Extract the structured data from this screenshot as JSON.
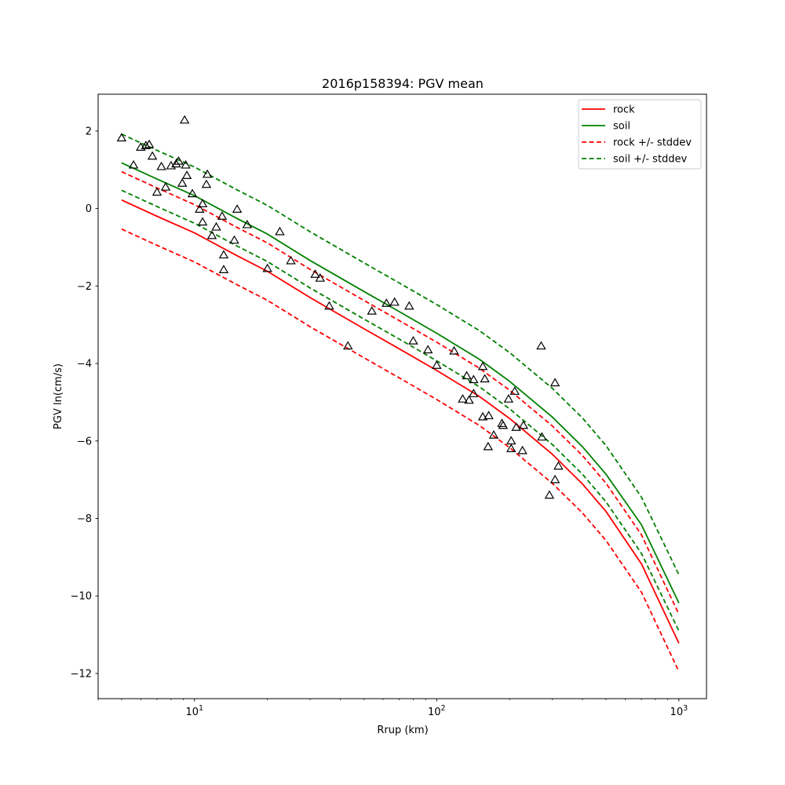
{
  "chart_data": {
    "type": "line",
    "title": "2016p158394: PGV mean",
    "xlabel": "Rrup (km)",
    "ylabel": "PGV ln(cm/s)",
    "xscale": "log",
    "xlim": [
      4.0,
      1300
    ],
    "ylim": [
      -12.65,
      2.95
    ],
    "x_tick_values": [
      10,
      100,
      1000
    ],
    "x_ticks": [
      {
        "base": "10",
        "exp": "1"
      },
      {
        "base": "10",
        "exp": "2"
      },
      {
        "base": "10",
        "exp": "3"
      }
    ],
    "y_tick_values": [
      2,
      0,
      -2,
      -4,
      -6,
      -8,
      -10,
      -12
    ],
    "y_ticks": [
      "2",
      "0",
      "−2",
      "−4",
      "−6",
      "−8",
      "−10",
      "−12"
    ],
    "grid": false,
    "legend_position": "top-right",
    "legend": [
      {
        "label": "rock",
        "color": "#ff0000",
        "style": "solid"
      },
      {
        "label": "soil",
        "color": "#008000",
        "style": "solid"
      },
      {
        "label": "rock +/- stddev",
        "color": "#ff0000",
        "style": "dashed"
      },
      {
        "label": "soil +/- stddev",
        "color": "#008000",
        "style": "dashed"
      }
    ],
    "series": [
      {
        "name": "rock",
        "color": "#ff0000",
        "style": "solid",
        "x": [
          5,
          7,
          10,
          15,
          20,
          30,
          50,
          70,
          100,
          150,
          200,
          300,
          400,
          500,
          700,
          1000
        ],
        "y": [
          0.22,
          -0.2,
          -0.63,
          -1.22,
          -1.62,
          -2.3,
          -3.1,
          -3.62,
          -4.18,
          -4.85,
          -5.42,
          -6.34,
          -7.11,
          -7.82,
          -9.17,
          -11.22
        ]
      },
      {
        "name": "soil",
        "color": "#008000",
        "style": "solid",
        "x": [
          5,
          7,
          10,
          15,
          20,
          30,
          50,
          70,
          100,
          150,
          200,
          300,
          400,
          500,
          700,
          1000
        ],
        "y": [
          1.18,
          0.76,
          0.33,
          -0.26,
          -0.66,
          -1.34,
          -2.14,
          -2.66,
          -3.22,
          -3.89,
          -4.46,
          -5.38,
          -6.15,
          -6.86,
          -8.16,
          -10.18
        ]
      },
      {
        "name": "rock - stddev",
        "color": "#ff0000",
        "style": "dashed",
        "x": [
          5,
          7,
          10,
          15,
          20,
          30,
          50,
          70,
          100,
          150,
          200,
          300,
          400,
          500,
          700,
          1000
        ],
        "y": [
          -0.53,
          -0.95,
          -1.38,
          -1.97,
          -2.37,
          -3.05,
          -3.85,
          -4.37,
          -4.93,
          -5.6,
          -6.17,
          -7.09,
          -7.86,
          -8.57,
          -9.9,
          -11.95
        ]
      },
      {
        "name": "rock + stddev",
        "color": "#ff0000",
        "style": "dashed",
        "x": [
          5,
          7,
          10,
          15,
          20,
          30,
          50,
          70,
          100,
          150,
          200,
          300,
          400,
          500,
          700,
          1000
        ],
        "y": [
          0.95,
          0.53,
          0.1,
          -0.49,
          -0.89,
          -1.57,
          -2.37,
          -2.89,
          -3.45,
          -4.12,
          -4.69,
          -5.61,
          -6.38,
          -7.09,
          -8.42,
          -10.47
        ]
      },
      {
        "name": "soil - stddev",
        "color": "#008000",
        "style": "dashed",
        "x": [
          5,
          7,
          10,
          15,
          20,
          30,
          50,
          70,
          100,
          150,
          200,
          300,
          400,
          500,
          700,
          1000
        ],
        "y": [
          0.47,
          0.05,
          -0.38,
          -0.97,
          -1.37,
          -2.05,
          -2.85,
          -3.37,
          -3.93,
          -4.6,
          -5.17,
          -6.09,
          -6.86,
          -7.57,
          -8.9,
          -10.9
        ]
      },
      {
        "name": "soil + stddev",
        "color": "#008000",
        "style": "dashed",
        "x": [
          5,
          7,
          10,
          15,
          20,
          30,
          50,
          70,
          100,
          150,
          200,
          300,
          400,
          500,
          700,
          1000
        ],
        "y": [
          1.92,
          1.5,
          1.07,
          0.48,
          0.08,
          -0.6,
          -1.4,
          -1.92,
          -2.48,
          -3.15,
          -3.72,
          -4.64,
          -5.41,
          -6.12,
          -7.45,
          -9.45
        ]
      }
    ],
    "observations": {
      "marker": "triangle",
      "color": "#000000",
      "points": [
        [
          5.0,
          1.82
        ],
        [
          5.6,
          1.12
        ],
        [
          6.0,
          1.58
        ],
        [
          6.3,
          1.62
        ],
        [
          6.5,
          1.65
        ],
        [
          6.7,
          1.35
        ],
        [
          7.0,
          0.42
        ],
        [
          7.3,
          1.08
        ],
        [
          7.6,
          0.55
        ],
        [
          8.0,
          1.1
        ],
        [
          8.4,
          1.15
        ],
        [
          8.6,
          1.22
        ],
        [
          8.9,
          0.65
        ],
        [
          9.1,
          2.28
        ],
        [
          9.2,
          1.12
        ],
        [
          9.3,
          0.85
        ],
        [
          9.8,
          0.38
        ],
        [
          10.5,
          -0.02
        ],
        [
          10.8,
          0.12
        ],
        [
          10.8,
          -0.35
        ],
        [
          11.2,
          0.62
        ],
        [
          11.3,
          0.88
        ],
        [
          11.8,
          -0.7
        ],
        [
          12.3,
          -0.48
        ],
        [
          13.0,
          -0.2
        ],
        [
          13.2,
          -1.2
        ],
        [
          13.2,
          -1.58
        ],
        [
          14.6,
          -0.82
        ],
        [
          15.0,
          -0.02
        ],
        [
          16.5,
          -0.42
        ],
        [
          20.0,
          -1.55
        ],
        [
          22.5,
          -0.6
        ],
        [
          25.0,
          -1.35
        ],
        [
          31.5,
          -1.7
        ],
        [
          33.0,
          -1.8
        ],
        [
          36.0,
          -2.52
        ],
        [
          43.0,
          -3.55
        ],
        [
          54.0,
          -2.65
        ],
        [
          62.0,
          -2.45
        ],
        [
          67.0,
          -2.42
        ],
        [
          77.0,
          -2.52
        ],
        [
          80.0,
          -3.42
        ],
        [
          92.0,
          -3.65
        ],
        [
          100.0,
          -4.05
        ],
        [
          118.0,
          -3.68
        ],
        [
          128.0,
          -4.92
        ],
        [
          133.0,
          -4.32
        ],
        [
          136.0,
          -4.95
        ],
        [
          142.0,
          -4.42
        ],
        [
          142.0,
          -4.78
        ],
        [
          155.0,
          -4.08
        ],
        [
          155.0,
          -5.38
        ],
        [
          158.0,
          -4.4
        ],
        [
          163.0,
          -6.15
        ],
        [
          164.0,
          -5.35
        ],
        [
          172.0,
          -5.85
        ],
        [
          186.0,
          -5.55
        ],
        [
          188.0,
          -5.6
        ],
        [
          198.0,
          -4.92
        ],
        [
          203.0,
          -6.0
        ],
        [
          203.0,
          -6.2
        ],
        [
          210.0,
          -4.72
        ],
        [
          213.0,
          -5.65
        ],
        [
          226.0,
          -6.25
        ],
        [
          228.0,
          -5.6
        ],
        [
          270.0,
          -3.55
        ],
        [
          272.0,
          -5.9
        ],
        [
          292.0,
          -7.4
        ],
        [
          308.0,
          -4.5
        ],
        [
          308.0,
          -7.0
        ],
        [
          318.0,
          -6.65
        ]
      ]
    }
  }
}
